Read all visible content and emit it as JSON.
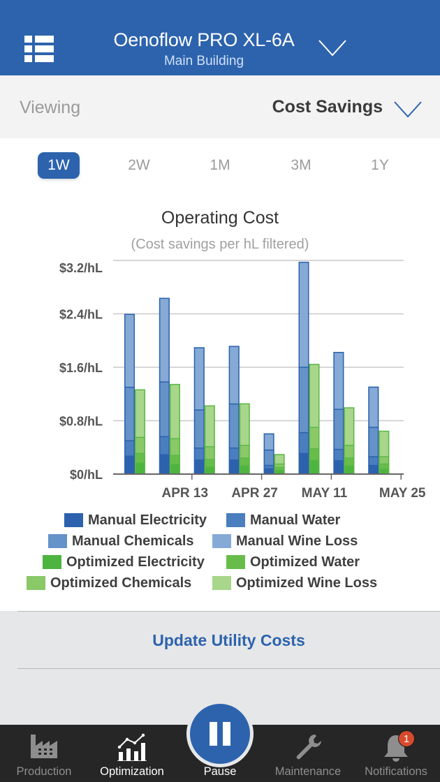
{
  "header": {
    "title": "Oenoflow PRO XL-6A",
    "subtitle": "Main Building",
    "menu_icon": "list-menu-icon",
    "dropdown_icon": "chevron-down-icon"
  },
  "viewing": {
    "label": "Viewing",
    "value": "Cost Savings",
    "dropdown_icon": "chevron-down-icon"
  },
  "range_tabs": [
    {
      "label": "1W",
      "active": true
    },
    {
      "label": "2W",
      "active": false
    },
    {
      "label": "1M",
      "active": false
    },
    {
      "label": "3M",
      "active": false
    },
    {
      "label": "1Y",
      "active": false
    }
  ],
  "colors": {
    "brand": "#2d63ad",
    "manual_electricity": "#2c62ad",
    "manual_water": "#4a7ebf",
    "manual_chemicals": "#6592c8",
    "manual_wine_loss": "#86aad6",
    "manual_border": "#2c62ad",
    "optimized_electricity": "#4db440",
    "optimized_water": "#68bd4a",
    "optimized_chemicals": "#8ac868",
    "optimized_wine_loss": "#a8d68a",
    "optimized_border": "#5cb847",
    "badge": "#d94a2d"
  },
  "chart_data": {
    "type": "bar",
    "stacked": true,
    "grouped": true,
    "title": "Operating Cost",
    "subtitle": "(Cost savings per hL filtered)",
    "xlabel": "",
    "ylabel": "",
    "ylim": [
      0,
      3.2
    ],
    "yticks": [
      0,
      0.8,
      1.6,
      2.4,
      3.2
    ],
    "ytick_labels": [
      "$0/hL",
      "$0.8/hL",
      "$1.6/hL",
      "$2.4/hL",
      "$3.2/hL"
    ],
    "grid": true,
    "x_tick_labels": [
      "APR 13",
      "APR 27",
      "MAY 11",
      "MAY 25"
    ],
    "x_tick_after_groups": [
      2,
      4,
      6,
      8
    ],
    "n_groups": 8,
    "legend_position": "bottom",
    "series": [
      {
        "name": "Manual Electricity",
        "group": "manual",
        "color_key": "manual_electricity",
        "values": [
          0.27,
          0.29,
          0.21,
          0.21,
          0.08,
          0.31,
          0.2,
          0.13
        ]
      },
      {
        "name": "Manual Water",
        "group": "manual",
        "color_key": "manual_water",
        "values": [
          0.23,
          0.27,
          0.18,
          0.18,
          0.05,
          0.31,
          0.17,
          0.13
        ]
      },
      {
        "name": "Manual Chemicals",
        "group": "manual",
        "color_key": "manual_chemicals",
        "values": [
          0.8,
          0.82,
          0.57,
          0.66,
          0.23,
          0.98,
          0.6,
          0.44
        ]
      },
      {
        "name": "Manual Wine Loss",
        "group": "manual",
        "color_key": "manual_wine_loss",
        "values": [
          1.1,
          1.26,
          0.94,
          0.87,
          0.25,
          1.58,
          0.86,
          0.61
        ]
      },
      {
        "name": "Optimized Electricity",
        "group": "optimized",
        "color_key": "optimized_electricity",
        "values": [
          0.17,
          0.15,
          0.11,
          0.13,
          0.06,
          0.21,
          0.13,
          0.08
        ]
      },
      {
        "name": "Optimized Water",
        "group": "optimized",
        "color_key": "optimized_water",
        "values": [
          0.14,
          0.13,
          0.11,
          0.11,
          0.04,
          0.17,
          0.11,
          0.07
        ]
      },
      {
        "name": "Optimized Chemicals",
        "group": "optimized",
        "color_key": "optimized_chemicals",
        "values": [
          0.24,
          0.25,
          0.19,
          0.19,
          0.05,
          0.32,
          0.19,
          0.11
        ]
      },
      {
        "name": "Optimized Wine Loss",
        "group": "optimized",
        "color_key": "optimized_wine_loss",
        "values": [
          0.72,
          0.82,
          0.62,
          0.63,
          0.15,
          0.95,
          0.57,
          0.39
        ]
      }
    ]
  },
  "legend": [
    {
      "label": "Manual Electricity",
      "color_key": "manual_electricity"
    },
    {
      "label": "Manual Water",
      "color_key": "manual_water"
    },
    {
      "label": "Manual Chemicals",
      "color_key": "manual_chemicals"
    },
    {
      "label": "Manual Wine Loss",
      "color_key": "manual_wine_loss"
    },
    {
      "label": "Optimized Electricity",
      "color_key": "optimized_electricity"
    },
    {
      "label": "Optimized Water",
      "color_key": "optimized_water"
    },
    {
      "label": "Optimized Chemicals",
      "color_key": "optimized_chemicals"
    },
    {
      "label": "Optimized Wine Loss",
      "color_key": "optimized_wine_loss"
    }
  ],
  "update_button": {
    "label": "Update Utility Costs"
  },
  "tabbar": {
    "items": [
      {
        "label": "Production",
        "icon": "factory-icon",
        "active": false
      },
      {
        "label": "Optimization",
        "icon": "chart-trend-icon",
        "active": true
      },
      {
        "label": "Pause",
        "icon": "pause-icon",
        "active": true
      },
      {
        "label": "Maintenance",
        "icon": "wrench-icon",
        "active": false
      },
      {
        "label": "Notifications",
        "icon": "bell-icon",
        "active": false,
        "badge": "1"
      }
    ]
  }
}
